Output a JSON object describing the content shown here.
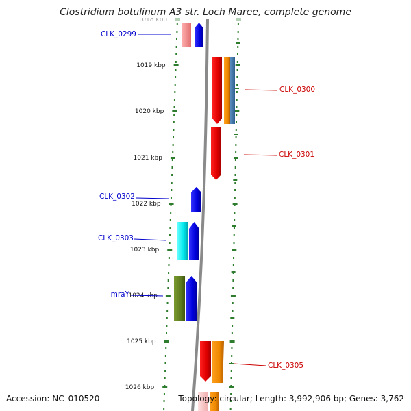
{
  "title": "Clostridium botulinum A3 str. Loch Maree, complete genome",
  "footer": {
    "accession": "Accession: NC_010520",
    "topology": "Topology: circular; Length: 3,992,906 bp; Genes: 3,762"
  },
  "colors": {
    "backbone": "#8a8a8a",
    "dots": "#2e7d2e",
    "forward_label": "#0000cc",
    "reverse_label": "#cc0000"
  },
  "axis_ticks": [
    {
      "label": "1018 kbp",
      "faded": true
    },
    {
      "label": "1019 kbp"
    },
    {
      "label": "1020 kbp"
    },
    {
      "label": "1021 kbp"
    },
    {
      "label": "1022 kbp"
    },
    {
      "label": "1023 kbp"
    },
    {
      "label": "1024 kbp"
    },
    {
      "label": "1025 kbp"
    },
    {
      "label": "1026 kbp"
    }
  ],
  "gene_labels": [
    {
      "name": "CLK_0299",
      "side": "left"
    },
    {
      "name": "CLK_0300",
      "side": "right"
    },
    {
      "name": "CLK_0301",
      "side": "right"
    },
    {
      "name": "CLK_0302",
      "side": "left"
    },
    {
      "name": "CLK_0303",
      "side": "left"
    },
    {
      "name": "mraY",
      "side": "left"
    },
    {
      "name": "CLK_0305",
      "side": "right"
    }
  ]
}
